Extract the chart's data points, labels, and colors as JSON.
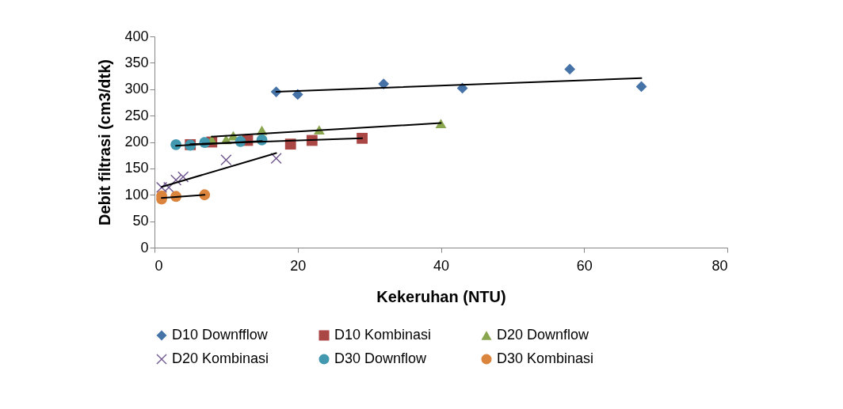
{
  "chart_data": {
    "type": "scatter",
    "xlabel": "Kekeruhan (NTU)",
    "ylabel": "Debit filtrasi (cm3/dtk)",
    "xlim": [
      0,
      80
    ],
    "xticks": [
      0,
      20,
      40,
      60,
      80
    ],
    "ylim": [
      0,
      400
    ],
    "yticks": [
      0,
      50,
      100,
      150,
      200,
      250,
      300,
      350,
      400
    ],
    "legend": "bottom",
    "series": [
      {
        "name": "D10 Downfflow",
        "color": "#4572a7",
        "marker": "diamond",
        "x": [
          17,
          20,
          32,
          43,
          58,
          68
        ],
        "values": [
          295,
          290,
          310,
          302,
          338,
          305
        ]
      },
      {
        "name": "D10 Kombinasi",
        "color": "#aa4643",
        "marker": "square",
        "x": [
          5,
          8,
          13,
          19,
          22,
          29
        ],
        "values": [
          195,
          200,
          203,
          196,
          203,
          207
        ]
      },
      {
        "name": "D20 Downflow",
        "color": "#89a54e",
        "marker": "triangle",
        "x": [
          8,
          10,
          11,
          15,
          23,
          40
        ],
        "values": [
          204,
          205,
          212,
          222,
          223,
          235
        ]
      },
      {
        "name": "D20 Kombinasi",
        "color": "#71588f",
        "marker": "cross",
        "x": [
          1,
          2,
          3,
          4,
          10,
          17
        ],
        "values": [
          114,
          114,
          128,
          134,
          166,
          169
        ]
      },
      {
        "name": "D30 Downflow",
        "color": "#4198af",
        "marker": "circle",
        "x": [
          3,
          5,
          7,
          12,
          15
        ],
        "values": [
          195,
          194,
          199,
          201,
          204
        ]
      },
      {
        "name": "D30 Kombinasi",
        "color": "#db843d",
        "marker": "circle",
        "x": [
          1,
          1,
          3,
          7
        ],
        "values": [
          98,
          92,
          97,
          100
        ]
      },
      {
        "type": "line",
        "color": "#000000",
        "marker": "none",
        "x": [
          17,
          68
        ],
        "values": [
          295,
          321
        ]
      },
      {
        "type": "line",
        "color": "#000000",
        "marker": "none",
        "x": [
          5,
          29
        ],
        "values": [
          196,
          207
        ]
      },
      {
        "type": "line",
        "color": "#000000",
        "marker": "none",
        "x": [
          8,
          40
        ],
        "values": [
          210,
          236
        ]
      },
      {
        "type": "line",
        "color": "#000000",
        "marker": "none",
        "x": [
          1,
          17
        ],
        "values": [
          115,
          179
        ]
      },
      {
        "type": "line",
        "color": "#000000",
        "marker": "none",
        "x": [
          3,
          15
        ],
        "values": [
          193,
          202
        ]
      },
      {
        "type": "line",
        "color": "#000000",
        "marker": "none",
        "x": [
          1,
          7
        ],
        "values": [
          94,
          100
        ]
      }
    ]
  }
}
